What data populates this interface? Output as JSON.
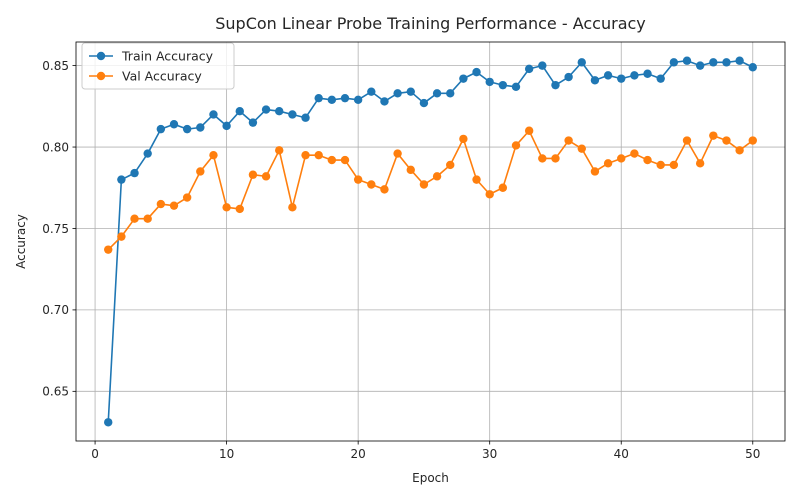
{
  "chart_data": {
    "type": "line",
    "title": "SupCon Linear Probe Training Performance - Accuracy",
    "xlabel": "Epoch",
    "ylabel": "Accuracy",
    "xlim": [
      -1.45,
      52.45
    ],
    "ylim": [
      0.6195,
      0.8645
    ],
    "xticks": [
      0,
      10,
      20,
      30,
      40,
      50
    ],
    "yticks": [
      0.65,
      0.7,
      0.75,
      0.8,
      0.85
    ],
    "ytick_labels": [
      "0.65",
      "0.70",
      "0.75",
      "0.80",
      "0.85"
    ],
    "grid": true,
    "legend_position": "top-left",
    "x": [
      1,
      2,
      3,
      4,
      5,
      6,
      7,
      8,
      9,
      10,
      11,
      12,
      13,
      14,
      15,
      16,
      17,
      18,
      19,
      20,
      21,
      22,
      23,
      24,
      25,
      26,
      27,
      28,
      29,
      30,
      31,
      32,
      33,
      34,
      35,
      36,
      37,
      38,
      39,
      40,
      41,
      42,
      43,
      44,
      45,
      46,
      47,
      48,
      49,
      50
    ],
    "series": [
      {
        "name": "Train Accuracy",
        "color": "#1f77b4",
        "values": [
          0.631,
          0.78,
          0.784,
          0.796,
          0.811,
          0.814,
          0.811,
          0.812,
          0.82,
          0.813,
          0.822,
          0.815,
          0.823,
          0.822,
          0.82,
          0.818,
          0.83,
          0.829,
          0.83,
          0.829,
          0.834,
          0.828,
          0.833,
          0.834,
          0.827,
          0.833,
          0.833,
          0.842,
          0.846,
          0.84,
          0.838,
          0.837,
          0.848,
          0.85,
          0.838,
          0.843,
          0.852,
          0.841,
          0.844,
          0.842,
          0.844,
          0.845,
          0.842,
          0.852,
          0.853,
          0.85,
          0.852,
          0.852,
          0.853,
          0.849
        ]
      },
      {
        "name": "Val Accuracy",
        "color": "#ff7f0e",
        "values": [
          0.737,
          0.745,
          0.756,
          0.756,
          0.765,
          0.764,
          0.769,
          0.785,
          0.795,
          0.763,
          0.762,
          0.783,
          0.782,
          0.798,
          0.763,
          0.795,
          0.795,
          0.792,
          0.792,
          0.78,
          0.777,
          0.774,
          0.796,
          0.786,
          0.777,
          0.782,
          0.789,
          0.805,
          0.78,
          0.771,
          0.775,
          0.801,
          0.81,
          0.793,
          0.793,
          0.804,
          0.799,
          0.785,
          0.79,
          0.793,
          0.796,
          0.792,
          0.789,
          0.789,
          0.804,
          0.79,
          0.807,
          0.804,
          0.798,
          0.804
        ]
      }
    ]
  }
}
